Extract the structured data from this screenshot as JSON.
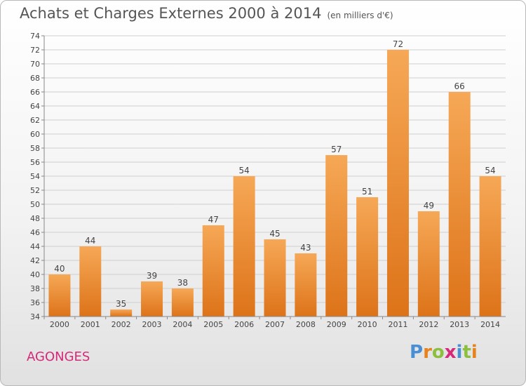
{
  "title": "Achats et Charges Externes 2000 à 2014",
  "subtitle": "(en milliers d'€)",
  "commune": "AGONGES",
  "logo": {
    "letters": [
      "P",
      "r",
      "o",
      "x",
      "i",
      "t",
      "i"
    ],
    "colors": [
      "#4a8fd4",
      "#e8821c",
      "#8cbf3f",
      "#d7287a",
      "#4a8fd4",
      "#8cbf3f",
      "#e8821c"
    ]
  },
  "colors": {
    "bar_top": "#f6a856",
    "bar_bottom": "#dd7319",
    "grid": "#cfcfcf",
    "title": "#555555",
    "commune": "#d7287a"
  },
  "chart_data": {
    "type": "bar",
    "title": "Achats et Charges Externes 2000 à 2014",
    "subtitle": "(en milliers d'€)",
    "categories": [
      "2000",
      "2001",
      "2002",
      "2003",
      "2004",
      "2005",
      "2006",
      "2007",
      "2008",
      "2009",
      "2010",
      "2011",
      "2012",
      "2013",
      "2014"
    ],
    "values": [
      40,
      44,
      35,
      39,
      38,
      47,
      54,
      45,
      43,
      57,
      51,
      72,
      49,
      66,
      54
    ],
    "ylim": [
      34,
      74
    ],
    "ytick_step": 2,
    "grid": true
  }
}
